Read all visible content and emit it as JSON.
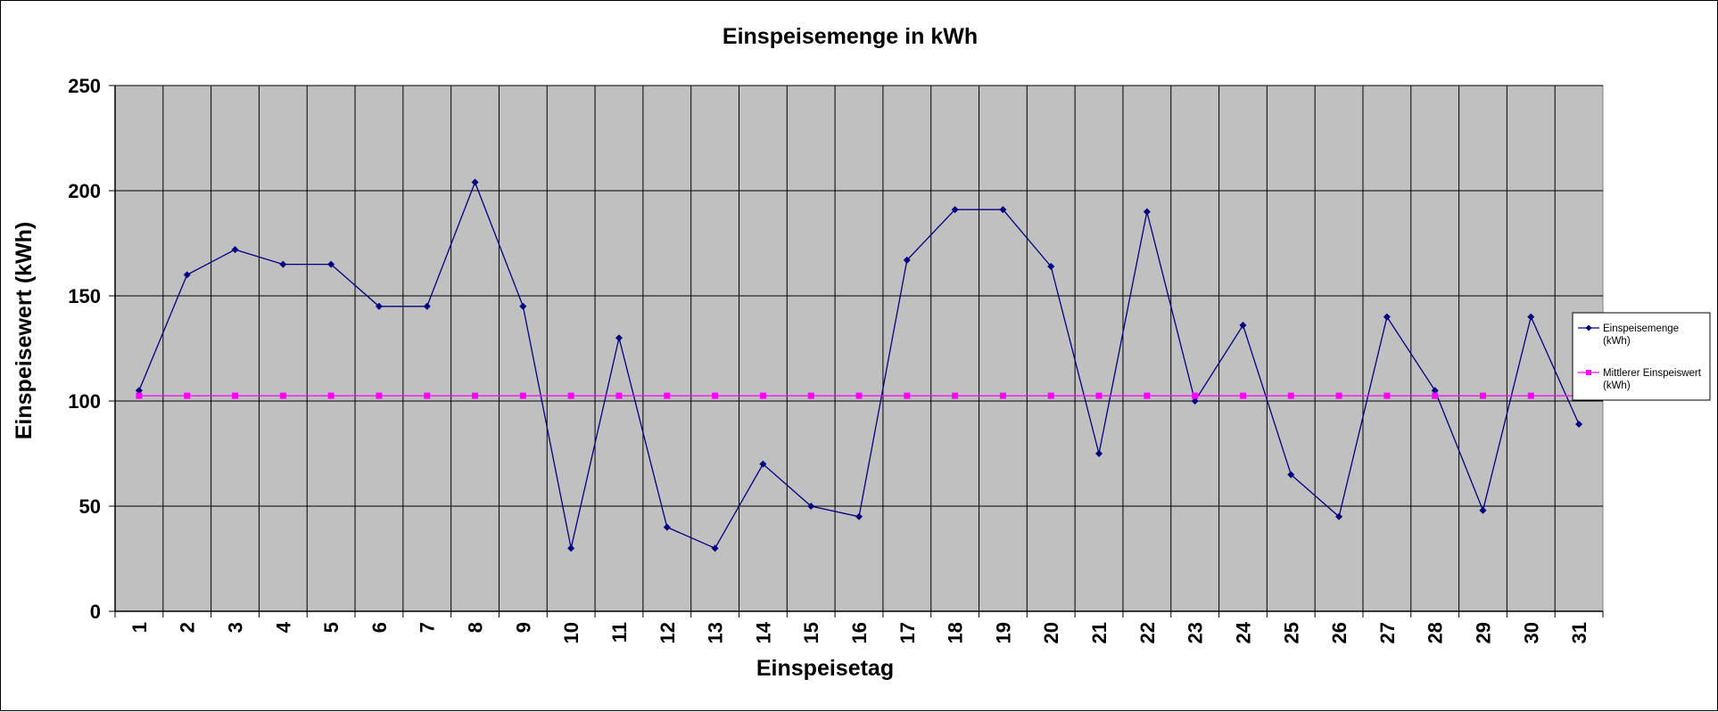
{
  "chart_data": {
    "type": "line",
    "title": "Einspeisemenge in kWh",
    "xlabel": "Einspeisetag",
    "ylabel": "Einspeisewert  (kWh)",
    "ylim": [
      0,
      250
    ],
    "yticks": [
      0,
      50,
      100,
      150,
      200,
      250
    ],
    "categories": [
      "1",
      "2",
      "3",
      "4",
      "5",
      "6",
      "7",
      "8",
      "9",
      "10",
      "11",
      "12",
      "13",
      "14",
      "15",
      "16",
      "17",
      "18",
      "19",
      "20",
      "21",
      "22",
      "23",
      "24",
      "25",
      "26",
      "27",
      "28",
      "29",
      "30",
      "31"
    ],
    "grid": true,
    "legend_position": "right",
    "plot_background": "#c0c0c0",
    "series": [
      {
        "name_lines": [
          "Einspeisemenge",
          "(kWh)"
        ],
        "color": "#000080",
        "marker": "diamond",
        "values": [
          105,
          160,
          172,
          165,
          165,
          145,
          145,
          204,
          145,
          30,
          130,
          40,
          30,
          70,
          50,
          45,
          167,
          191,
          191,
          164,
          75,
          190,
          100,
          136,
          65,
          45,
          140,
          105,
          48,
          140,
          89
        ]
      },
      {
        "name_lines": [
          "Mittlerer Einspeiswert",
          "(kWh)"
        ],
        "color": "#ff00ff",
        "marker": "square",
        "values": [
          102.5,
          102.5,
          102.5,
          102.5,
          102.5,
          102.5,
          102.5,
          102.5,
          102.5,
          102.5,
          102.5,
          102.5,
          102.5,
          102.5,
          102.5,
          102.5,
          102.5,
          102.5,
          102.5,
          102.5,
          102.5,
          102.5,
          102.5,
          102.5,
          102.5,
          102.5,
          102.5,
          102.5,
          102.5,
          102.5,
          102.5
        ]
      }
    ]
  }
}
